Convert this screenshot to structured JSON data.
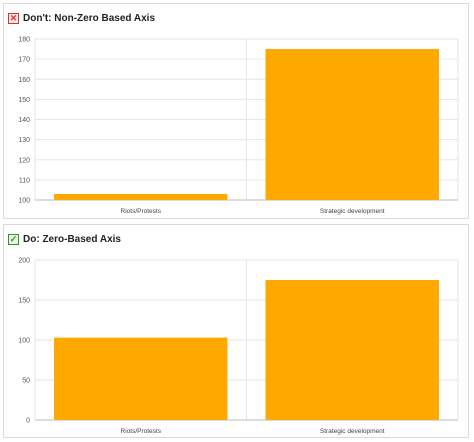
{
  "panels": [
    {
      "title": "Don't: Non-Zero Based Axis",
      "status": "bad",
      "icon": "x-box-icon",
      "icon_color": "#d6342c"
    },
    {
      "title": "Do: Zero-Based Axis",
      "status": "good",
      "icon": "check-box-icon",
      "icon_color": "#3a8f2c"
    }
  ],
  "bar_color": "#ffa800",
  "chart_data": [
    {
      "type": "bar",
      "title": "Don't: Non-Zero Based Axis",
      "categories": [
        "Riots/Protests",
        "Strategic development"
      ],
      "values": [
        103,
        175
      ],
      "ylim": [
        100,
        180
      ],
      "yticks": [
        100,
        110,
        120,
        130,
        140,
        150,
        160,
        170,
        180
      ],
      "xlabel": "",
      "ylabel": "",
      "grid": true
    },
    {
      "type": "bar",
      "title": "Do: Zero-Based Axis",
      "categories": [
        "Riots/Protests",
        "Strategic development"
      ],
      "values": [
        103,
        175
      ],
      "ylim": [
        0,
        200
      ],
      "yticks": [
        0,
        50,
        100,
        150,
        200
      ],
      "xlabel": "",
      "ylabel": "",
      "grid": true
    }
  ]
}
